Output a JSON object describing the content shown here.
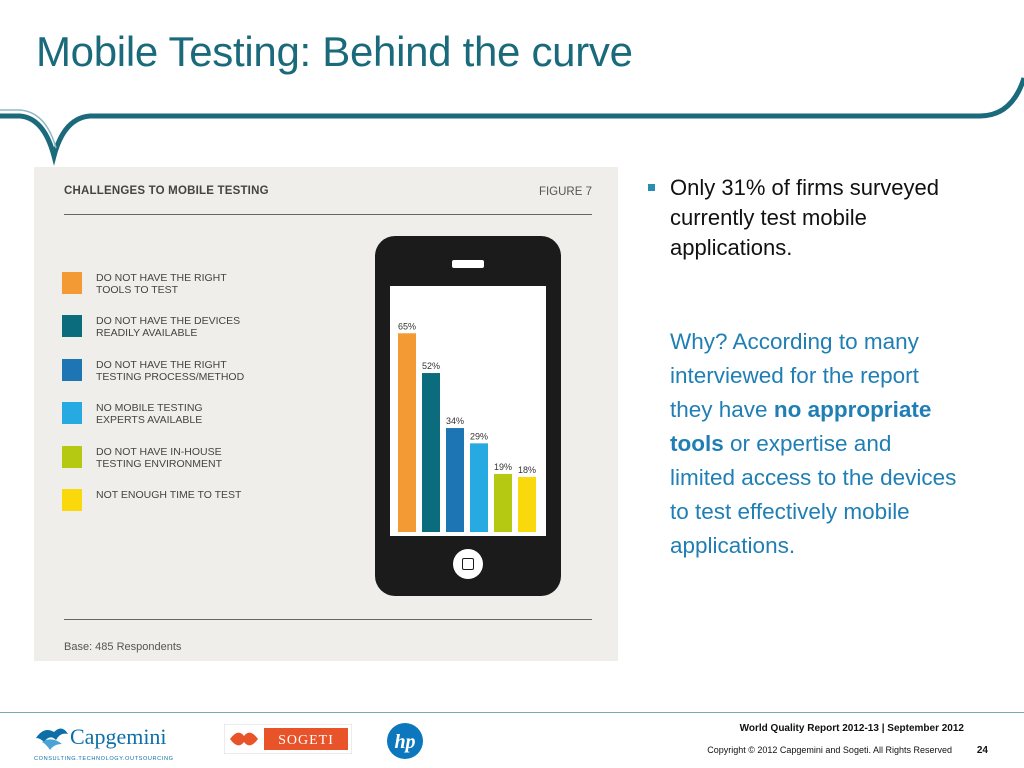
{
  "slide": {
    "title": "Mobile Testing: Behind the curve"
  },
  "figure": {
    "heading": "CHALLENGES TO MOBILE TESTING",
    "figure_number": "FIGURE 7",
    "base_note": "Base: 485 Respondents"
  },
  "chart_data": {
    "type": "bar",
    "title": "CHALLENGES TO MOBILE TESTING",
    "xlabel": "",
    "ylabel": "",
    "ylim": [
      0,
      70
    ],
    "grid": false,
    "legend_position": "left",
    "categories": [
      "DO NOT HAVE THE RIGHT\nTOOLS TO TEST",
      "DO NOT HAVE THE DEVICES\nREADILY AVAILABLE",
      "DO NOT HAVE THE RIGHT\nTESTING PROCESS/METHOD",
      "NO MOBILE TESTING\nEXPERTS AVAILABLE",
      "DO NOT HAVE IN-HOUSE\nTESTING ENVIRONMENT",
      "NOT ENOUGH TIME TO TEST"
    ],
    "values": [
      65,
      52,
      34,
      29,
      19,
      18
    ],
    "value_labels": [
      "65%",
      "52%",
      "34%",
      "29%",
      "19%",
      "18%"
    ],
    "colors": [
      "#f39a34",
      "#0b6c7e",
      "#1d75b3",
      "#27a9e1",
      "#b5c812",
      "#f9d80c"
    ]
  },
  "text": {
    "bullet": "Only 31% of firms surveyed currently test mobile applications.",
    "why_before": "Why? According to many interviewed for the report they have ",
    "why_bold": "no appropriate tools",
    "why_after": " or expertise and limited access to the devices to test effectively mobile applications."
  },
  "footer": {
    "report": "World Quality Report 2012-13 | September 2012",
    "copyright": "Copyright © 2012 Capgemini and Sogeti. All Rights Reserved",
    "page": "24"
  },
  "logos": {
    "capgemini_name": "Capgemini",
    "capgemini_tagline": "CONSULTING.TECHNOLOGY.OUTSOURCING",
    "sogeti_name": "SOGETI",
    "hp_name": "hp"
  },
  "colors": {
    "title": "#1a6a7c",
    "wave": "#1a6a7c",
    "why_text": "#1f7fb5"
  }
}
